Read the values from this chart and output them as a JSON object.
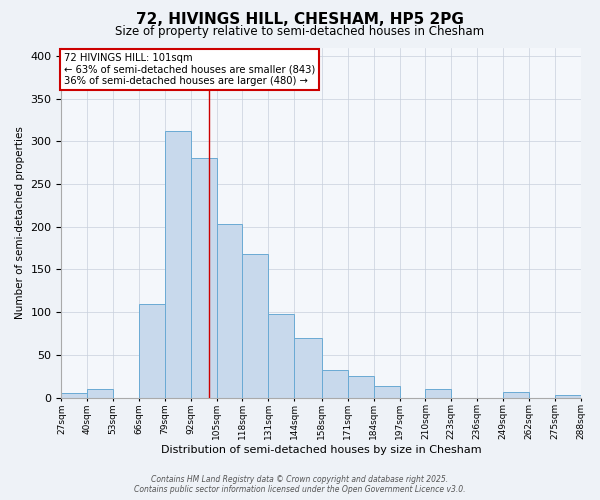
{
  "title": "72, HIVINGS HILL, CHESHAM, HP5 2PG",
  "subtitle": "Size of property relative to semi-detached houses in Chesham",
  "xlabel": "Distribution of semi-detached houses by size in Chesham",
  "ylabel": "Number of semi-detached properties",
  "bin_labels": [
    "27sqm",
    "40sqm",
    "53sqm",
    "66sqm",
    "79sqm",
    "92sqm",
    "105sqm",
    "118sqm",
    "131sqm",
    "144sqm",
    "158sqm",
    "171sqm",
    "184sqm",
    "197sqm",
    "210sqm",
    "223sqm",
    "236sqm",
    "249sqm",
    "262sqm",
    "275sqm",
    "288sqm"
  ],
  "bin_edges": [
    27,
    40,
    53,
    66,
    79,
    92,
    105,
    118,
    131,
    144,
    158,
    171,
    184,
    197,
    210,
    223,
    236,
    249,
    262,
    275,
    288
  ],
  "bar_heights": [
    5,
    10,
    0,
    110,
    312,
    280,
    203,
    168,
    98,
    70,
    32,
    25,
    13,
    0,
    10,
    0,
    0,
    6,
    0,
    3
  ],
  "bar_facecolor": "#c8d9ec",
  "bar_edgecolor": "#6aaad4",
  "property_value": 101,
  "annotation_title": "72 HIVINGS HILL: 101sqm",
  "annotation_line1": "← 63% of semi-detached houses are smaller (843)",
  "annotation_line2": "36% of semi-detached houses are larger (480) →",
  "vline_color": "#cc0000",
  "ylim": [
    0,
    410
  ],
  "yticks": [
    0,
    50,
    100,
    150,
    200,
    250,
    300,
    350,
    400
  ],
  "footer_line1": "Contains HM Land Registry data © Crown copyright and database right 2025.",
  "footer_line2": "Contains public sector information licensed under the Open Government Licence v3.0.",
  "bg_color": "#eef2f7",
  "plot_bg_color": "#f4f7fb",
  "grid_color": "#c8d0dc"
}
